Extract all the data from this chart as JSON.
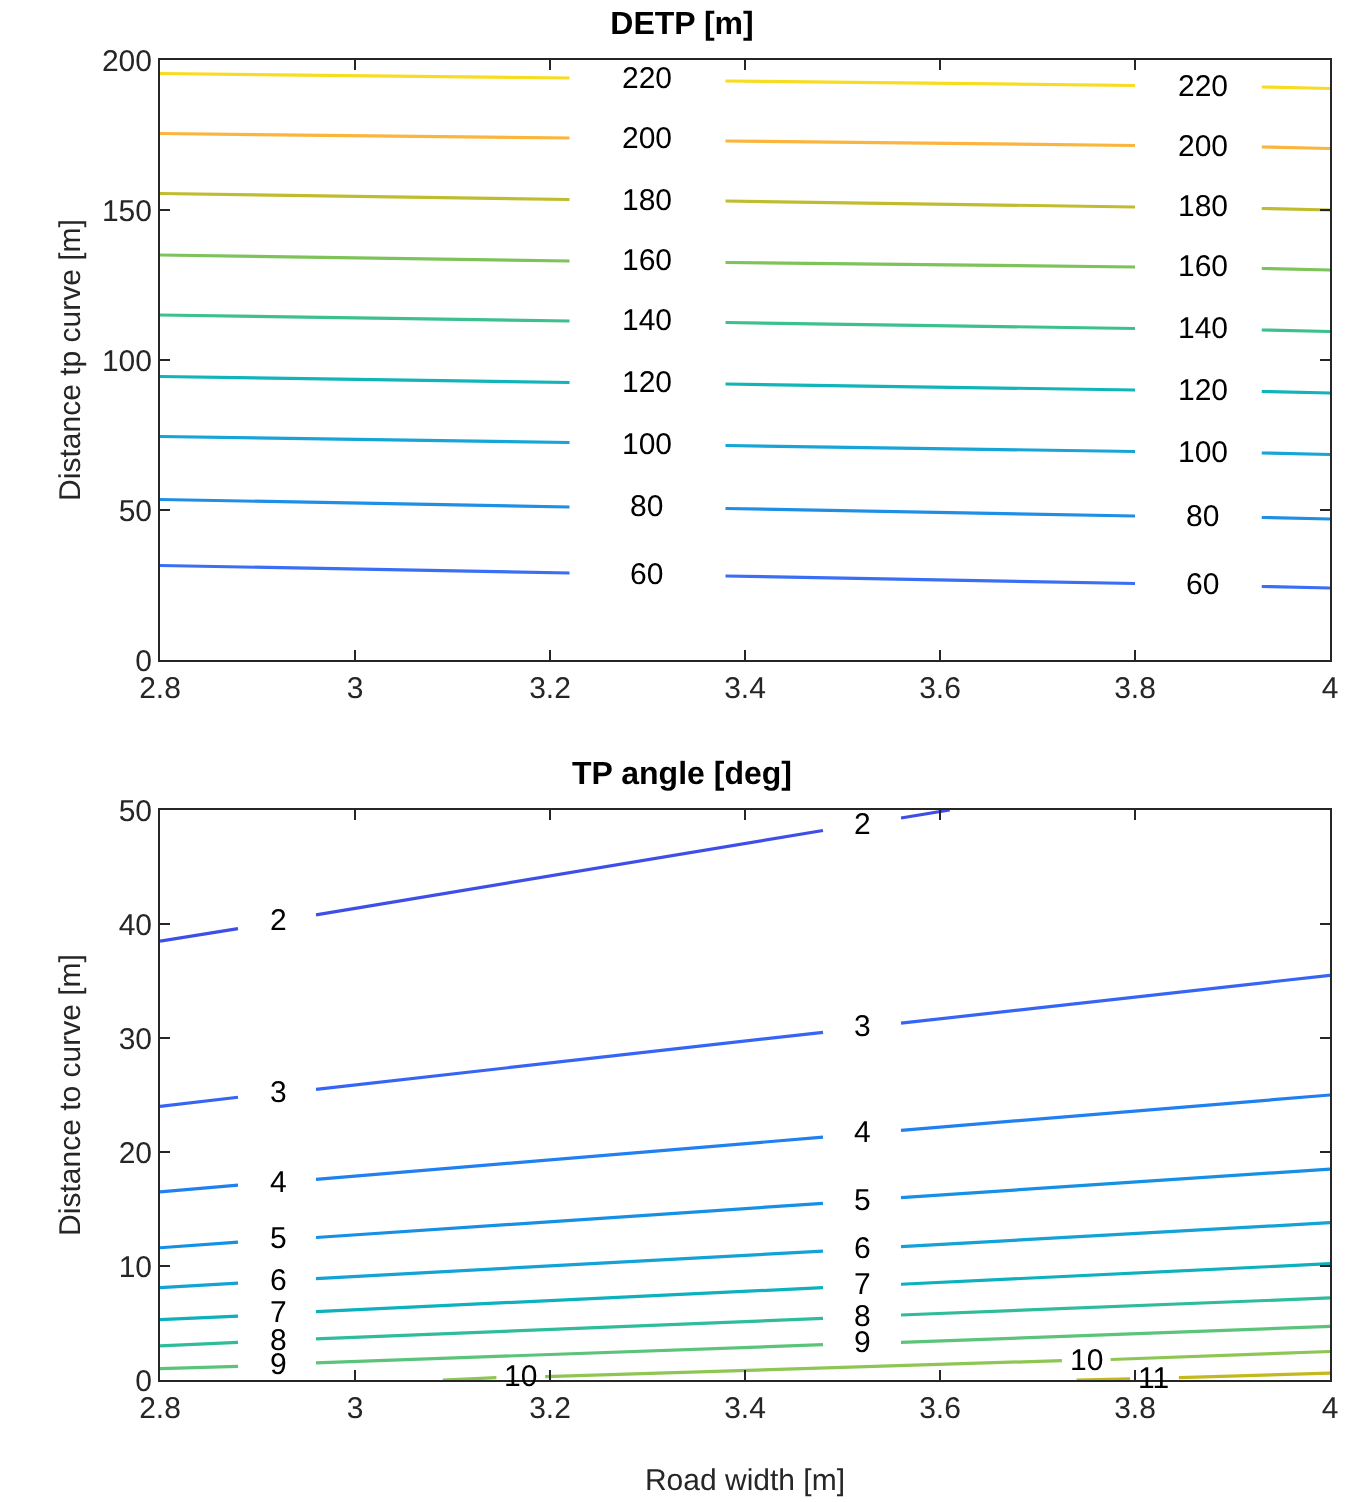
{
  "chart_data": [
    {
      "type": "line",
      "title": "DETP [m]",
      "ylabel": "Distance tp curve [m]",
      "xlim": [
        2.8,
        4
      ],
      "xticks": [
        2.8,
        3,
        3.2,
        3.4,
        3.6,
        3.8,
        4
      ],
      "ylim": [
        0,
        200
      ],
      "yticks": [
        0,
        50,
        100,
        150,
        200
      ],
      "grid": false,
      "legend": false,
      "series": [
        {
          "name": "60",
          "color": "#3a6ef5",
          "x": [
            2.8,
            3.22,
            3.3,
            3.38,
            3.8,
            3.87,
            3.93,
            4
          ],
          "values": [
            31.5,
            29,
            null,
            28,
            25.5,
            null,
            24.5,
            24
          ]
        },
        {
          "name": "80",
          "color": "#1f8fe6",
          "x": [
            2.8,
            3.22,
            3.3,
            3.38,
            3.8,
            3.87,
            3.93,
            4
          ],
          "values": [
            53.5,
            51,
            null,
            50.5,
            48,
            null,
            47.5,
            47
          ]
        },
        {
          "name": "100",
          "color": "#16a5d6",
          "x": [
            2.8,
            3.22,
            3.3,
            3.38,
            3.8,
            3.87,
            3.93,
            4
          ],
          "values": [
            74.5,
            72.5,
            null,
            71.5,
            69.5,
            null,
            69,
            68.5
          ]
        },
        {
          "name": "120",
          "color": "#10b4b9",
          "x": [
            2.8,
            3.22,
            3.3,
            3.38,
            3.8,
            3.87,
            3.93,
            4
          ],
          "values": [
            94.5,
            92.5,
            null,
            92,
            90,
            null,
            89.5,
            89
          ]
        },
        {
          "name": "140",
          "color": "#3cc08e",
          "x": [
            2.8,
            3.22,
            3.3,
            3.38,
            3.8,
            3.87,
            3.93,
            4
          ],
          "values": [
            115,
            113,
            null,
            112.5,
            110.5,
            null,
            110,
            109.5
          ]
        },
        {
          "name": "160",
          "color": "#7dc35a",
          "x": [
            2.8,
            3.22,
            3.3,
            3.38,
            3.8,
            3.87,
            3.93,
            4
          ],
          "values": [
            135,
            133,
            null,
            132.5,
            131,
            null,
            130.5,
            130
          ]
        },
        {
          "name": "180",
          "color": "#c0bc2f",
          "x": [
            2.8,
            3.22,
            3.3,
            3.38,
            3.8,
            3.87,
            3.93,
            4
          ],
          "values": [
            155.5,
            153.5,
            null,
            153,
            151,
            null,
            150.5,
            150
          ]
        },
        {
          "name": "200",
          "color": "#f9b53c",
          "x": [
            2.8,
            3.22,
            3.3,
            3.38,
            3.8,
            3.87,
            3.93,
            4
          ],
          "values": [
            175.5,
            174,
            null,
            173,
            171.5,
            null,
            171,
            170.5
          ]
        },
        {
          "name": "220",
          "color": "#f8dc22",
          "x": [
            2.8,
            3.22,
            3.3,
            3.38,
            3.8,
            3.87,
            3.93,
            4
          ],
          "values": [
            195.5,
            194,
            null,
            193,
            191.5,
            null,
            191,
            190.5
          ]
        }
      ]
    },
    {
      "type": "line",
      "title": "TP angle [deg]",
      "xlabel": "Road width [m]",
      "ylabel": "Distance to curve [m]",
      "xlim": [
        2.8,
        4
      ],
      "xticks": [
        2.8,
        3,
        3.2,
        3.4,
        3.6,
        3.8,
        4
      ],
      "ylim": [
        0,
        50
      ],
      "yticks": [
        0,
        10,
        20,
        30,
        40,
        50
      ],
      "grid": false,
      "legend": false,
      "series": [
        {
          "name": "2",
          "color": "#3e4fe8",
          "x": [
            2.8,
            2.88,
            2.92,
            2.96,
            3.48,
            3.52,
            3.56,
            3.61
          ],
          "values": [
            38.5,
            39.6,
            null,
            40.8,
            48.2,
            null,
            49.3,
            50
          ]
        },
        {
          "name": "3",
          "color": "#3665f5",
          "x": [
            2.8,
            2.88,
            2.92,
            2.96,
            3.48,
            3.52,
            3.56,
            4
          ],
          "values": [
            24,
            24.8,
            null,
            25.5,
            30.5,
            null,
            31.3,
            35.5
          ]
        },
        {
          "name": "4",
          "color": "#2180f0",
          "x": [
            2.8,
            2.88,
            2.92,
            2.96,
            3.48,
            3.52,
            3.56,
            4
          ],
          "values": [
            16.5,
            17.1,
            null,
            17.6,
            21.3,
            null,
            21.9,
            25
          ]
        },
        {
          "name": "5",
          "color": "#1690e4",
          "x": [
            2.8,
            2.88,
            2.92,
            2.96,
            3.48,
            3.52,
            3.56,
            4
          ],
          "values": [
            11.6,
            12.1,
            null,
            12.5,
            15.5,
            null,
            16,
            18.5
          ]
        },
        {
          "name": "6",
          "color": "#13a2d6",
          "x": [
            2.8,
            2.88,
            2.92,
            2.96,
            3.48,
            3.52,
            3.56,
            4
          ],
          "values": [
            8.1,
            8.5,
            null,
            8.9,
            11.3,
            null,
            11.7,
            13.8
          ]
        },
        {
          "name": "7",
          "color": "#0cb1bd",
          "x": [
            2.8,
            2.88,
            2.92,
            2.96,
            3.48,
            3.52,
            3.56,
            4
          ],
          "values": [
            5.3,
            5.6,
            null,
            6,
            8.1,
            null,
            8.4,
            10.2
          ]
        },
        {
          "name": "8",
          "color": "#2fbc9c",
          "x": [
            2.8,
            2.88,
            2.92,
            2.96,
            3.48,
            3.52,
            3.56,
            4
          ],
          "values": [
            3,
            3.3,
            null,
            3.6,
            5.4,
            null,
            5.7,
            7.2
          ]
        },
        {
          "name": "9",
          "color": "#5bc47a",
          "x": [
            2.8,
            2.88,
            2.92,
            2.96,
            3.48,
            3.52,
            3.56,
            4
          ],
          "values": [
            1,
            1.2,
            null,
            1.5,
            3.1,
            null,
            3.3,
            4.7
          ]
        },
        {
          "name": "10",
          "color": "#8ec653",
          "x": [
            3.09,
            3.145,
            3.17,
            3.195,
            3.725,
            3.75,
            3.775,
            4
          ],
          "values": [
            0,
            0.2,
            null,
            0.3,
            1.7,
            null,
            1.8,
            2.5
          ]
        },
        {
          "name": "11",
          "color": "#c3b91f",
          "x": [
            3.74,
            3.795,
            3.82,
            3.845,
            4
          ],
          "values": [
            0,
            0.1,
            null,
            0.2,
            0.6
          ]
        }
      ]
    }
  ]
}
